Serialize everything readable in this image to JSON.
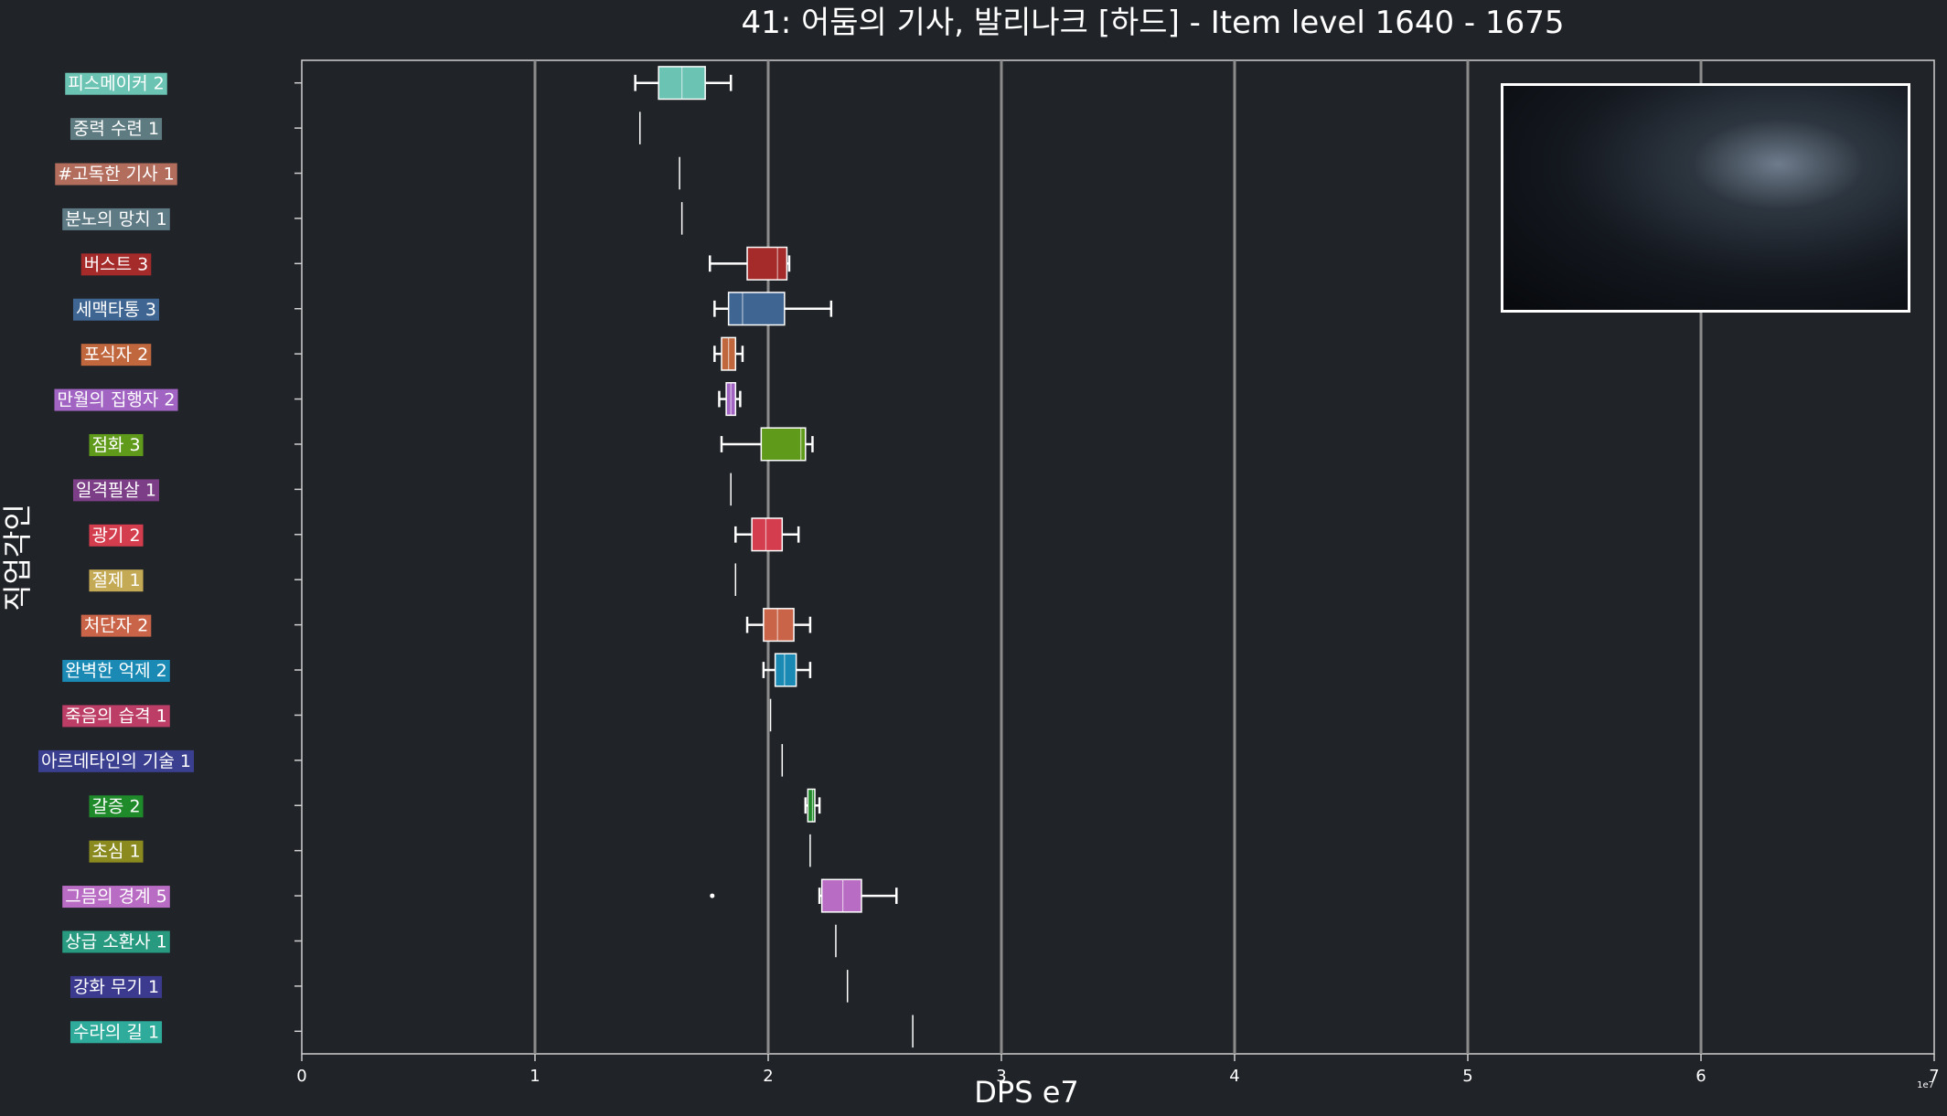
{
  "chart_data": {
    "type": "boxplot",
    "title": "41: 어둠의 기사, 발리나크 [하드] - Item level 1640 - 1675",
    "xlabel": "DPS e7",
    "ylabel": "직업각인",
    "x_offset_label": "1e7",
    "xlim": [
      0,
      7
    ],
    "xticks": [
      0,
      1,
      2,
      3,
      4,
      5,
      6,
      7
    ],
    "grid": "vertical",
    "categories": [
      {
        "label": "피스메이커 2",
        "color": "#6bc3b3",
        "min": 1.43,
        "q1": 1.53,
        "median": 1.63,
        "q3": 1.73,
        "max": 1.84,
        "outliers": []
      },
      {
        "label": "중력 수련 1",
        "color": "#5d7b80",
        "min": 1.45,
        "q1": 1.45,
        "median": 1.45,
        "q3": 1.45,
        "max": 1.45,
        "outliers": []
      },
      {
        "label": "#고독한 기사 1",
        "color": "#b36d5d",
        "min": 1.62,
        "q1": 1.62,
        "median": 1.62,
        "q3": 1.62,
        "max": 1.62,
        "outliers": []
      },
      {
        "label": "분노의 망치 1",
        "color": "#5e7a85",
        "min": 1.63,
        "q1": 1.63,
        "median": 1.63,
        "q3": 1.63,
        "max": 1.63,
        "outliers": []
      },
      {
        "label": "버스트 3",
        "color": "#a52a2a",
        "min": 1.75,
        "q1": 1.91,
        "median": 2.04,
        "q3": 2.08,
        "max": 2.09,
        "outliers": []
      },
      {
        "label": "세맥타통 3",
        "color": "#3f6592",
        "min": 1.77,
        "q1": 1.83,
        "median": 1.89,
        "q3": 2.07,
        "max": 2.27,
        "outliers": []
      },
      {
        "label": "포식자 2",
        "color": "#c0673e",
        "min": 1.77,
        "q1": 1.8,
        "median": 1.83,
        "q3": 1.86,
        "max": 1.89,
        "outliers": []
      },
      {
        "label": "만월의 집행자 2",
        "color": "#a264c2",
        "min": 1.79,
        "q1": 1.82,
        "median": 1.84,
        "q3": 1.86,
        "max": 1.88,
        "outliers": []
      },
      {
        "label": "점화 3",
        "color": "#5f9a1a",
        "min": 1.8,
        "q1": 1.97,
        "median": 2.14,
        "q3": 2.16,
        "max": 2.19,
        "outliers": []
      },
      {
        "label": "일격필살 1",
        "color": "#7c3e86",
        "min": 1.84,
        "q1": 1.84,
        "median": 1.84,
        "q3": 1.84,
        "max": 1.84,
        "outliers": []
      },
      {
        "label": "광기 2",
        "color": "#d33d4e",
        "min": 1.86,
        "q1": 1.93,
        "median": 1.99,
        "q3": 2.06,
        "max": 2.13,
        "outliers": []
      },
      {
        "label": "절제 1",
        "color": "#c5aa55",
        "min": 1.86,
        "q1": 1.86,
        "median": 1.86,
        "q3": 1.86,
        "max": 1.86,
        "outliers": []
      },
      {
        "label": "처단자 2",
        "color": "#c96448",
        "min": 1.91,
        "q1": 1.98,
        "median": 2.04,
        "q3": 2.11,
        "max": 2.18,
        "outliers": []
      },
      {
        "label": "완벽한 억제 2",
        "color": "#1a8ab5",
        "min": 1.98,
        "q1": 2.03,
        "median": 2.07,
        "q3": 2.12,
        "max": 2.18,
        "outliers": []
      },
      {
        "label": "죽음의 습격 1",
        "color": "#bc3e66",
        "min": 2.01,
        "q1": 2.01,
        "median": 2.01,
        "q3": 2.01,
        "max": 2.01,
        "outliers": []
      },
      {
        "label": "아르데타인의 기술 1",
        "color": "#3a3f8f",
        "min": 2.06,
        "q1": 2.06,
        "median": 2.06,
        "q3": 2.06,
        "max": 2.06,
        "outliers": []
      },
      {
        "label": "갈증 2",
        "color": "#1f8a2a",
        "min": 2.16,
        "q1": 2.17,
        "median": 2.19,
        "q3": 2.2,
        "max": 2.22,
        "outliers": []
      },
      {
        "label": "초심 1",
        "color": "#8a8a1e",
        "min": 2.18,
        "q1": 2.18,
        "median": 2.18,
        "q3": 2.18,
        "max": 2.18,
        "outliers": []
      },
      {
        "label": "그믐의 경계 5",
        "color": "#b96cc3",
        "min": 2.22,
        "q1": 2.23,
        "median": 2.32,
        "q3": 2.4,
        "max": 2.55,
        "outliers": [
          1.76
        ]
      },
      {
        "label": "상급 소환사 1",
        "color": "#279a80",
        "min": 2.29,
        "q1": 2.29,
        "median": 2.29,
        "q3": 2.29,
        "max": 2.29,
        "outliers": []
      },
      {
        "label": "강화 무기 1",
        "color": "#3b3a8e",
        "min": 2.34,
        "q1": 2.34,
        "median": 2.34,
        "q3": 2.34,
        "max": 2.34,
        "outliers": []
      },
      {
        "label": "수라의 길 1",
        "color": "#2fab9c",
        "min": 2.62,
        "q1": 2.62,
        "median": 2.62,
        "q3": 2.62,
        "max": 2.62,
        "outliers": []
      }
    ]
  }
}
